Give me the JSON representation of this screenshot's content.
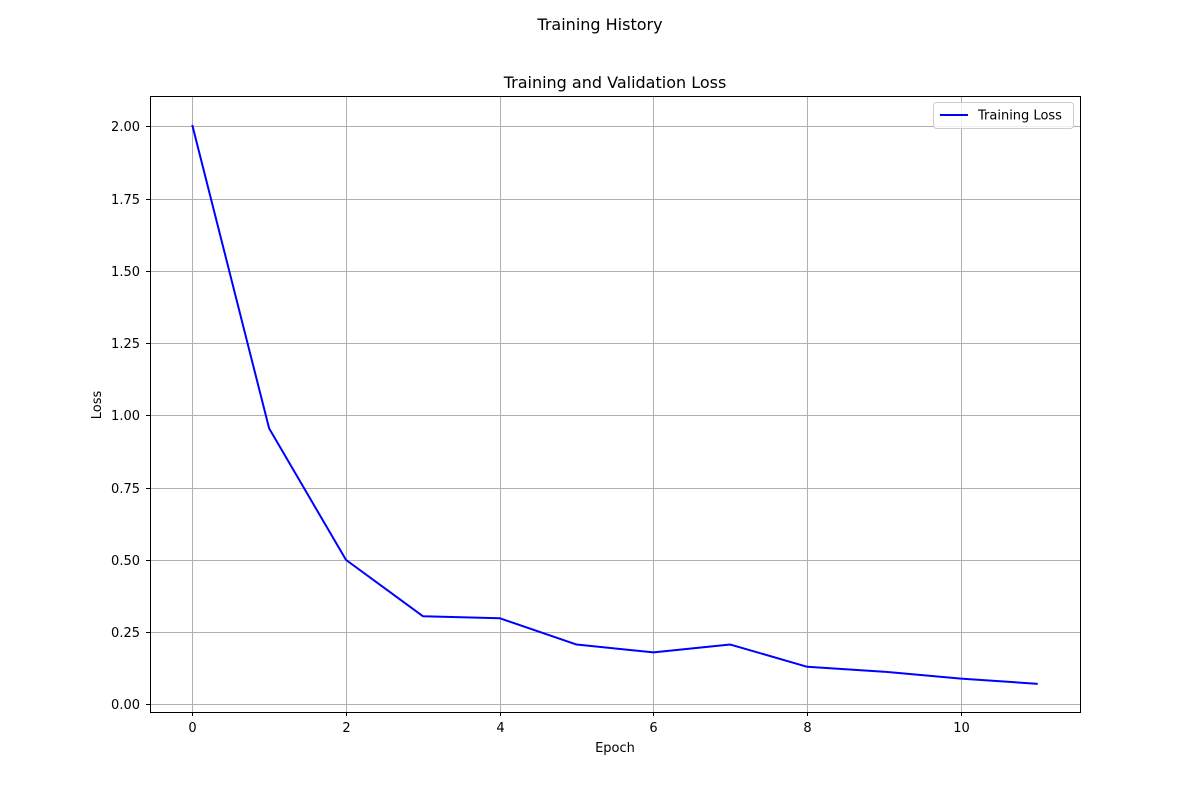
{
  "figure": {
    "suptitle": "Training History"
  },
  "chart_data": {
    "type": "line",
    "title": "Training and Validation Loss",
    "xlabel": "Epoch",
    "ylabel": "Loss",
    "xlim": [
      -0.55,
      11.55
    ],
    "ylim": [
      -0.0265,
      2.1055
    ],
    "xticks": [
      0,
      2,
      4,
      6,
      8,
      10
    ],
    "yticks": [
      0.0,
      0.25,
      0.5,
      0.75,
      1.0,
      1.25,
      1.5,
      1.75,
      2.0
    ],
    "grid": true,
    "legend_position": "upper right",
    "x": [
      0,
      1,
      2,
      3,
      4,
      5,
      6,
      7,
      8,
      9,
      10,
      11
    ],
    "series": [
      {
        "name": "Training Loss",
        "color": "#0000ff",
        "values": [
          2.005,
          0.955,
          0.5,
          0.305,
          0.298,
          0.207,
          0.18,
          0.207,
          0.13,
          0.113,
          0.089,
          0.071
        ]
      }
    ]
  }
}
